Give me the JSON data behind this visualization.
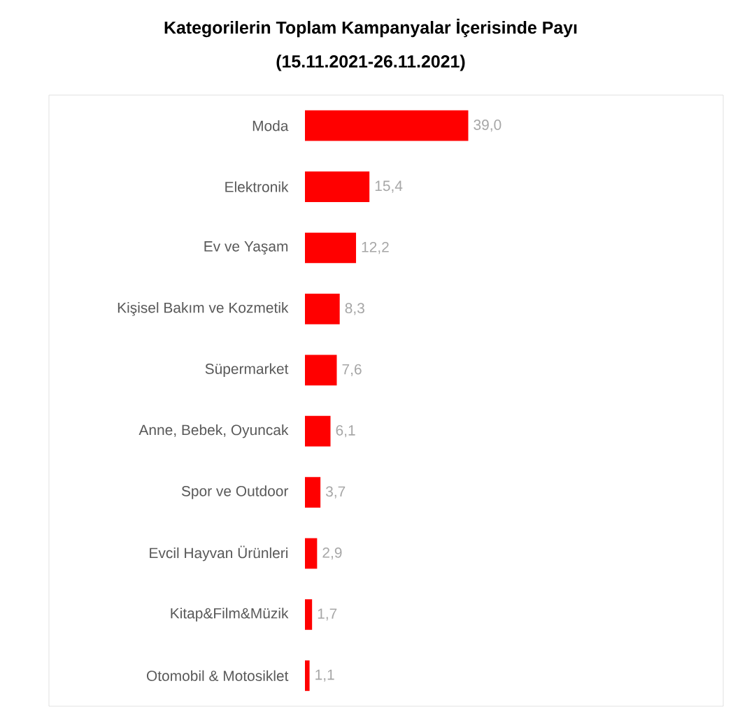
{
  "chart_data": {
    "type": "bar",
    "orientation": "horizontal",
    "title": "Kategorilerin Toplam Kampanyalar İçerisinde Payı",
    "subtitle": "(15.11.2021-26.11.2021)",
    "categories": [
      "Moda",
      "Elektronik",
      "Ev ve Yaşam",
      "Kişisel Bakım ve Kozmetik",
      "Süpermarket",
      "Anne, Bebek, Oyuncak",
      "Spor ve Outdoor",
      "Evcil Hayvan Ürünleri",
      "Kitap&Film&Müzik",
      "Otomobil & Motosiklet"
    ],
    "values": [
      39.0,
      15.4,
      12.2,
      8.3,
      7.6,
      6.1,
      3.7,
      2.9,
      1.7,
      1.1
    ],
    "value_labels": [
      "39,0",
      "15,4",
      "12,2",
      "8,3",
      "7,6",
      "6,1",
      "3,7",
      "2,9",
      "1,7",
      "1,1"
    ],
    "color": "#ff0000"
  }
}
